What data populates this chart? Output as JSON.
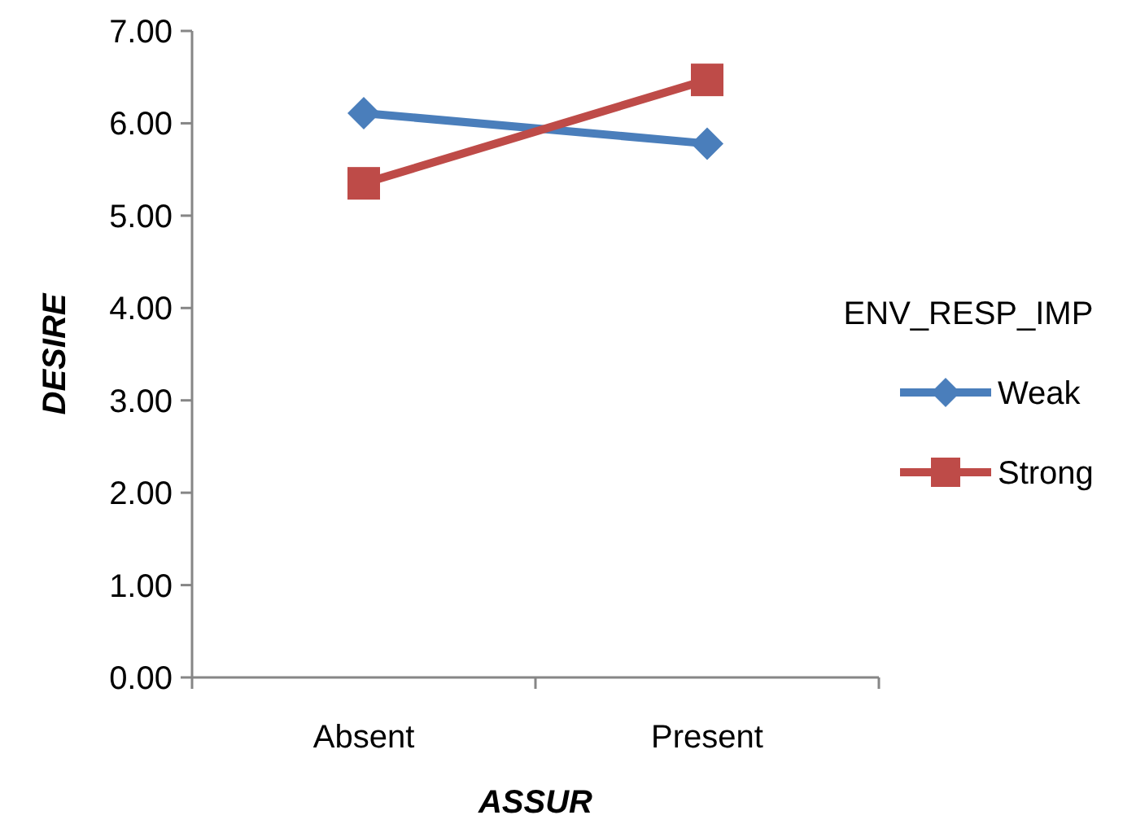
{
  "chart_data": {
    "type": "line",
    "xlabel": "ASSUR",
    "ylabel": "DESIRE",
    "legend_title": "ENV_RESP_IMP",
    "categories": [
      "Absent",
      "Present"
    ],
    "series": [
      {
        "name": "Weak",
        "color": "#4a7ebb",
        "values": [
          6.11,
          5.78
        ],
        "marker": "diamond"
      },
      {
        "name": "Strong",
        "color": "#be4b48",
        "values": [
          5.35,
          6.47
        ],
        "marker": "square"
      }
    ],
    "ylim": [
      0,
      7
    ],
    "yticks": [
      {
        "value": 0,
        "label": "0.00"
      },
      {
        "value": 1,
        "label": "1.00"
      },
      {
        "value": 2,
        "label": "2.00"
      },
      {
        "value": 3,
        "label": "3.00"
      },
      {
        "value": 4,
        "label": "4.00"
      },
      {
        "value": 5,
        "label": "5.00"
      },
      {
        "value": 6,
        "label": "6.00"
      },
      {
        "value": 7,
        "label": "7.00"
      }
    ],
    "grid": false,
    "legend": "right"
  }
}
